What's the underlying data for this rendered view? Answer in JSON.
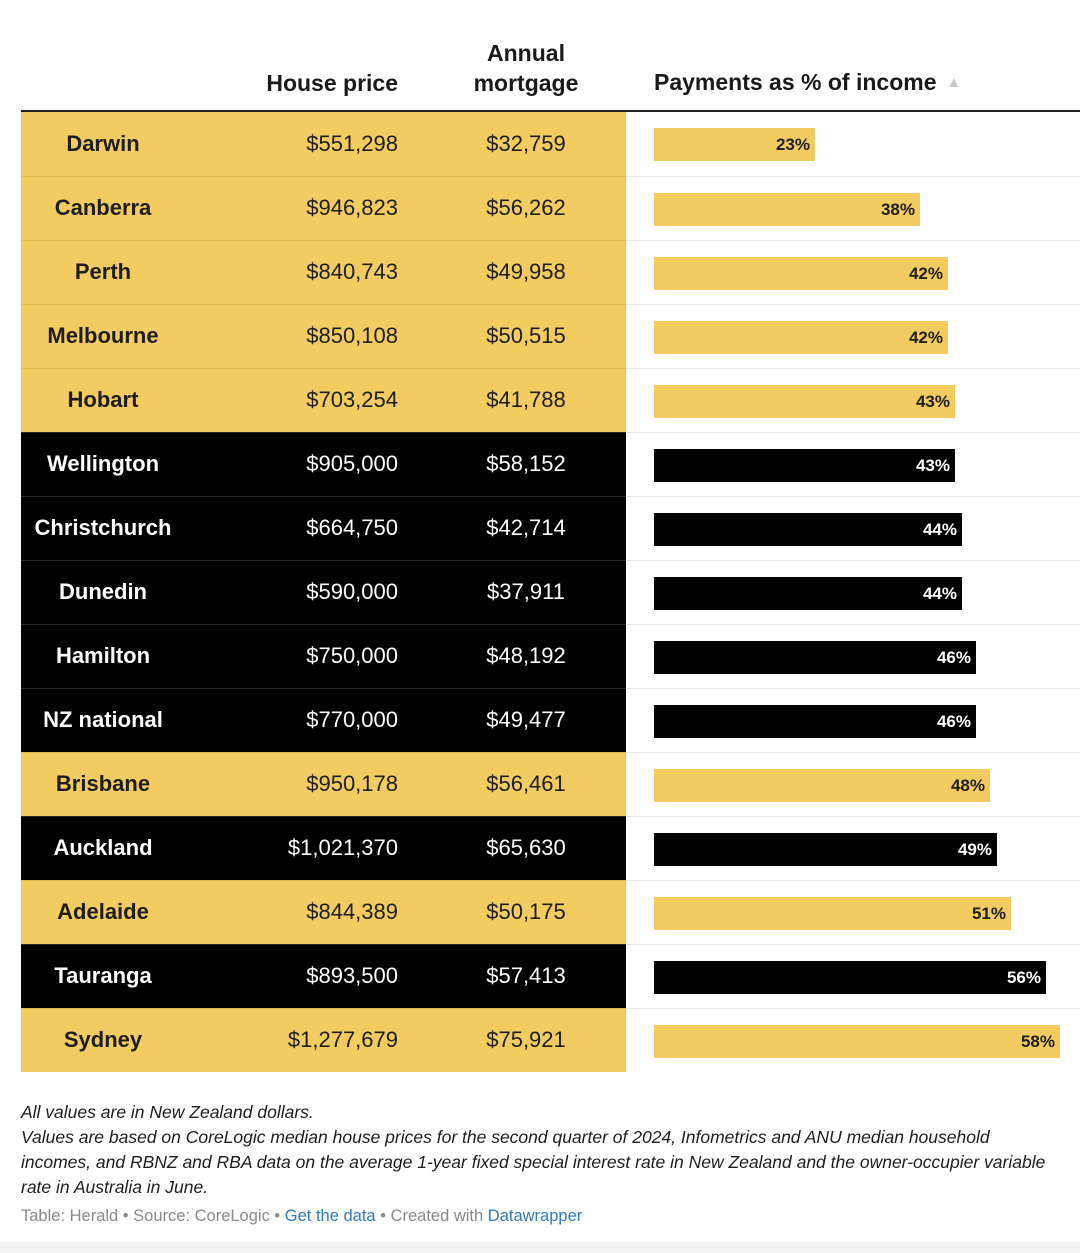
{
  "header": {
    "city": "",
    "house_price": "House price",
    "annual_mortgage_line1": "Annual",
    "annual_mortgage_line2": "mortgage",
    "payments": "Payments as % of income",
    "sort_icon": "sort-ascending-triangle"
  },
  "colors": {
    "australia": "#f2cb61",
    "new_zealand": "#000000"
  },
  "chart_data": {
    "type": "table",
    "columns": [
      "",
      "House price",
      "Annual mortgage",
      "Payments as % of income"
    ],
    "bar_scale_max": 58,
    "rows": [
      {
        "city": "Darwin",
        "price": "$551,298",
        "mortgage": "$32,759",
        "pct": 23,
        "pct_label": "23%",
        "group": "au"
      },
      {
        "city": "Canberra",
        "price": "$946,823",
        "mortgage": "$56,262",
        "pct": 38,
        "pct_label": "38%",
        "group": "au"
      },
      {
        "city": "Perth",
        "price": "$840,743",
        "mortgage": "$49,958",
        "pct": 42,
        "pct_label": "42%",
        "group": "au"
      },
      {
        "city": "Melbourne",
        "price": "$850,108",
        "mortgage": "$50,515",
        "pct": 42,
        "pct_label": "42%",
        "group": "au"
      },
      {
        "city": "Hobart",
        "price": "$703,254",
        "mortgage": "$41,788",
        "pct": 43,
        "pct_label": "43%",
        "group": "au"
      },
      {
        "city": "Wellington",
        "price": "$905,000",
        "mortgage": "$58,152",
        "pct": 43,
        "pct_label": "43%",
        "group": "nz"
      },
      {
        "city": "Christchurch",
        "price": "$664,750",
        "mortgage": "$42,714",
        "pct": 44,
        "pct_label": "44%",
        "group": "nz"
      },
      {
        "city": "Dunedin",
        "price": "$590,000",
        "mortgage": "$37,911",
        "pct": 44,
        "pct_label": "44%",
        "group": "nz"
      },
      {
        "city": "Hamilton",
        "price": "$750,000",
        "mortgage": "$48,192",
        "pct": 46,
        "pct_label": "46%",
        "group": "nz"
      },
      {
        "city": "NZ national",
        "price": "$770,000",
        "mortgage": "$49,477",
        "pct": 46,
        "pct_label": "46%",
        "group": "nz"
      },
      {
        "city": "Brisbane",
        "price": "$950,178",
        "mortgage": "$56,461",
        "pct": 48,
        "pct_label": "48%",
        "group": "au"
      },
      {
        "city": "Auckland",
        "price": "$1,021,370",
        "mortgage": "$65,630",
        "pct": 49,
        "pct_label": "49%",
        "group": "nz"
      },
      {
        "city": "Adelaide",
        "price": "$844,389",
        "mortgage": "$50,175",
        "pct": 51,
        "pct_label": "51%",
        "group": "au"
      },
      {
        "city": "Tauranga",
        "price": "$893,500",
        "mortgage": "$57,413",
        "pct": 56,
        "pct_label": "56%",
        "group": "nz"
      },
      {
        "city": "Sydney",
        "price": "$1,277,679",
        "mortgage": "$75,921",
        "pct": 58,
        "pct_label": "58%",
        "group": "au"
      }
    ]
  },
  "notes": {
    "line1": "All values are in New Zealand dollars.",
    "line2": "Values are based on CoreLogic median house prices for the second quarter of 2024, Infometrics and ANU median household incomes, and RBNZ and RBA data on the average 1-year fixed special interest rate in New Zealand and the owner-occupier variable rate in Australia in June."
  },
  "footer": {
    "prefix": "Table: Herald • Source: CoreLogic • ",
    "get_data": "Get the data",
    "middle": " • Created with ",
    "datawrapper": "Datawrapper"
  }
}
